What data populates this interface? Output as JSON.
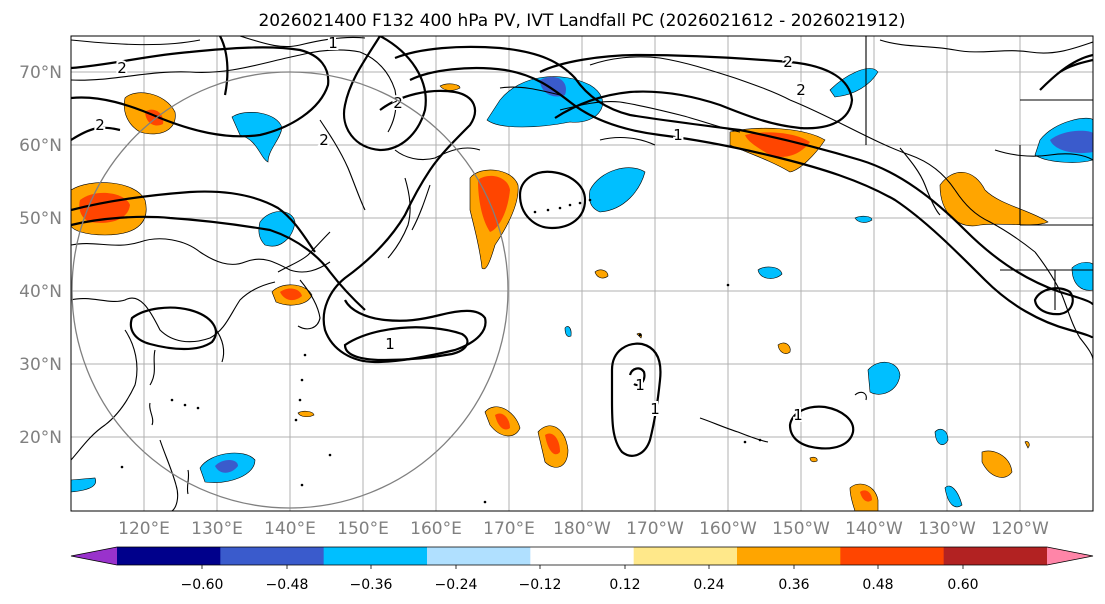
{
  "title": "2026021400 F132 400 hPa PV, IVT Landfall PC (2026021612 - 2026021912)",
  "lat_labels": [
    "70°N",
    "60°N",
    "50°N",
    "40°N",
    "30°N",
    "20°N"
  ],
  "lon_labels": [
    "120°E",
    "130°E",
    "140°E",
    "150°E",
    "160°E",
    "170°E",
    "180°W",
    "170°W",
    "160°W",
    "150°W",
    "140°W",
    "130°W",
    "120°W"
  ],
  "contour_labels": [
    "2",
    "1",
    "2",
    "2",
    "2",
    "1",
    "1",
    "2",
    "2",
    "1",
    "1",
    "1"
  ],
  "colorbar": {
    "colors": [
      "#9932cc",
      "#00008b",
      "#3a5bcc",
      "#00bfff",
      "#b0e0ff",
      "#ffffff",
      "#ffe88a",
      "#ffa500",
      "#ff4500",
      "#b22222",
      "#ff85a8"
    ],
    "tick_labels": [
      "−0.60",
      "−0.48",
      "−0.36",
      "−0.24",
      "−0.12",
      "0.12",
      "0.24",
      "0.36",
      "0.48",
      "0.60"
    ]
  }
}
